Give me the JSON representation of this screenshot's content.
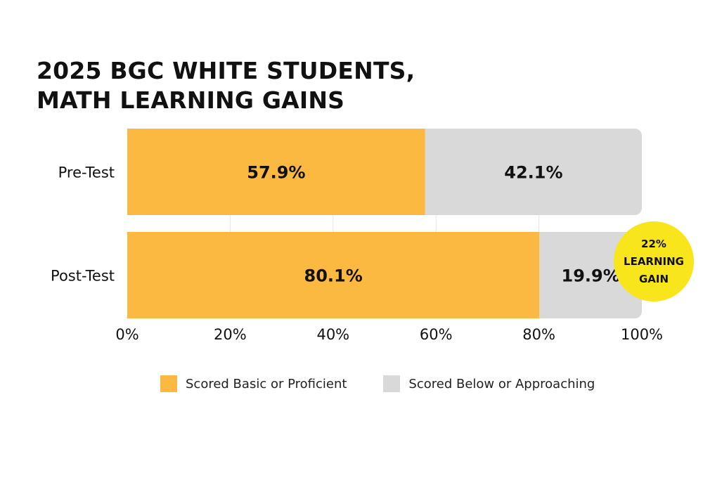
{
  "chart_data": {
    "type": "bar",
    "orientation": "horizontal",
    "stacked": true,
    "title_lines": [
      "2025 BGC WHITE STUDENTS,",
      "MATH LEARNING GAINS"
    ],
    "categories": [
      "Pre-Test",
      "Post-Test"
    ],
    "series": [
      {
        "name": "Scored Basic or Proficient",
        "values": [
          57.9,
          80.1
        ],
        "labels": [
          "57.9%",
          "80.1%"
        ],
        "color": "#FBB941"
      },
      {
        "name": "Scored Below or Approaching",
        "values": [
          42.1,
          19.9
        ],
        "labels": [
          "42.1%",
          "19.9%"
        ],
        "color": "#D9D9D9"
      }
    ],
    "xlim": [
      0,
      100
    ],
    "xticks": [
      "0%",
      "20%",
      "40%",
      "60%",
      "80%",
      "100%"
    ],
    "grid": true,
    "legend_position": "bottom",
    "annotation": {
      "lines": [
        "22%",
        "LEARNING",
        "GAIN"
      ],
      "color": "#F8E51C",
      "target_category": "Post-Test"
    }
  }
}
